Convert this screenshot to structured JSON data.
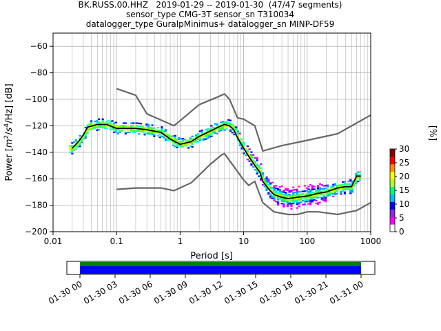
{
  "title_lines": [
    "BK.RUSS.00.HHZ   2019-01-29 -- 2019-01-30  (47/47 segments)",
    "sensor_type CMG-3T sensor_sn T310034",
    "datalogger_type GuralpMinimus+ datalogger_sn MINP-DF59"
  ],
  "chart_data": {
    "type": "heatmap",
    "xlabel": "Period [s]",
    "xscale": "log",
    "xlim": [
      0.01,
      1000
    ],
    "x_ticks": [
      0.01,
      0.1,
      1,
      10,
      100,
      1000
    ],
    "x_tick_labels": [
      "0.01",
      "0.1",
      "1",
      "10",
      "100",
      "1000"
    ],
    "ylabel_parts": [
      "Power [",
      "m",
      "2",
      "/",
      "s",
      "4",
      "/Hz] [dB]"
    ],
    "ylim": [
      -200,
      -50
    ],
    "y_ticks": [
      -200,
      -180,
      -160,
      -140,
      -120,
      -100,
      -80,
      -60
    ],
    "y_tick_labels": [
      "−200",
      "−180",
      "−160",
      "−140",
      "−120",
      "−100",
      "−80",
      "−60"
    ],
    "grid": true,
    "colorbar": {
      "label": "[%]",
      "range": [
        0,
        30
      ],
      "ticks": [
        0,
        5,
        10,
        15,
        20,
        25,
        30
      ],
      "tick_labels": [
        "0",
        "5",
        "10",
        "15",
        "20",
        "25",
        "30"
      ],
      "colormap": [
        "#ffffff",
        "#ff00ff",
        "#8a2be2",
        "#0000ff",
        "#00bfff",
        "#00ff7f",
        "#adff2f",
        "#ffff00",
        "#ff8c00",
        "#ff0000",
        "#8b0000"
      ]
    },
    "series": [
      {
        "name": "",
        "color": "#666666",
        "x": [
          0.1,
          0.2,
          0.3,
          0.8,
          2,
          4,
          5,
          6,
          8,
          10,
          15,
          20,
          40,
          100,
          300,
          1000
        ],
        "y": [
          -92,
          -97,
          -111,
          -120,
          -104,
          -98,
          -96,
          -100,
          -114,
          -115,
          -120,
          -139,
          -135,
          -131,
          -126,
          -112
        ]
      },
      {
        "name": "",
        "color": "#666666",
        "x": [
          0.1,
          0.2,
          0.5,
          0.8,
          1.5,
          3,
          4.5,
          5,
          10,
          12,
          15,
          20,
          30,
          50,
          70,
          100,
          150,
          300,
          600,
          1000
        ],
        "y": [
          -168,
          -167,
          -167,
          -169,
          -163,
          -149,
          -142,
          -141,
          -161,
          -165,
          -162,
          -178,
          -185,
          -187,
          -187,
          -185,
          -185,
          -187,
          -184,
          -178
        ]
      },
      {
        "name": "",
        "color": "#000000",
        "x": [
          0.02,
          0.025,
          0.03,
          0.035,
          0.05,
          0.07,
          0.1,
          0.15,
          0.2,
          0.3,
          0.5,
          0.7,
          1,
          1.5,
          2,
          3,
          4,
          5,
          6,
          7,
          8,
          10,
          12,
          15,
          18,
          20,
          25,
          30,
          40,
          50,
          70,
          100,
          150,
          200,
          300,
          400,
          500,
          600,
          700
        ],
        "y": [
          -137,
          -132,
          -127,
          -121,
          -119,
          -119,
          -122,
          -122,
          -122,
          -123,
          -125,
          -130,
          -134,
          -132,
          -128,
          -124,
          -121,
          -119,
          -120,
          -123,
          -129,
          -137,
          -143,
          -150,
          -155,
          -162,
          -168,
          -172,
          -174,
          -175,
          -174,
          -173,
          -171,
          -170,
          -167,
          -166,
          -166,
          -158,
          -158
        ]
      }
    ]
  },
  "timeline": {
    "start_label": "01-30 00",
    "tick_labels": [
      "01-30 00",
      "01-30 03",
      "01-30 06",
      "01-30 09",
      "01-30 12",
      "01-30 15",
      "01-30 18",
      "01-30 21",
      "01-31 00"
    ],
    "bar_colors": [
      "#008000",
      "#0000ff"
    ]
  }
}
